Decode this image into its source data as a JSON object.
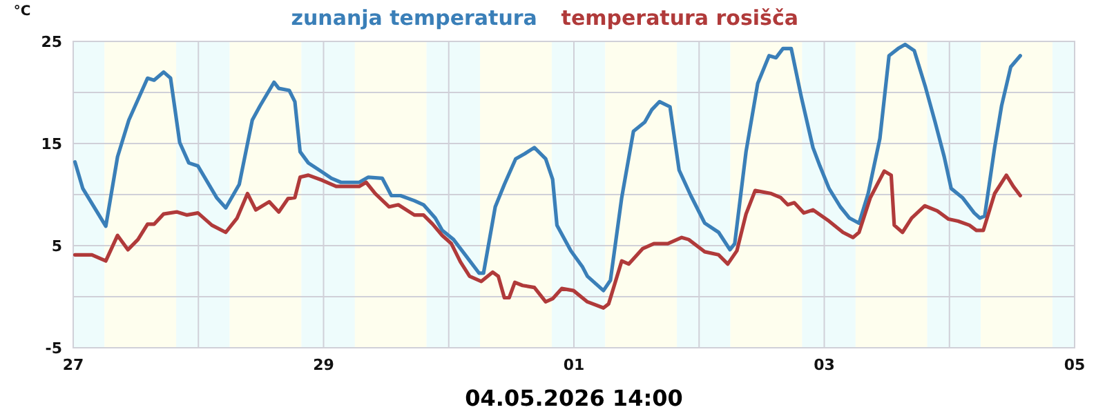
{
  "chart_data": {
    "type": "line",
    "ylabel": "°C",
    "legend": "top",
    "grid": true,
    "marker": "none",
    "line_style": "solid",
    "xlim": [
      "2026-04-27",
      "2026-05-05"
    ],
    "xticks": [
      {
        "value": "2026-04-27",
        "label": "27"
      },
      {
        "value": "2026-04-28",
        "label": null
      },
      {
        "value": "2026-04-29",
        "label": "29"
      },
      {
        "value": "2026-04-30",
        "label": null
      },
      {
        "value": "2026-05-01",
        "label": "01"
      },
      {
        "value": "2026-05-02",
        "label": null
      },
      {
        "value": "2026-05-03",
        "label": "03"
      },
      {
        "value": "2026-05-04",
        "label": null
      },
      {
        "value": "2026-05-05",
        "label": "05"
      }
    ],
    "ylim": [
      -5,
      25
    ],
    "yticks": [
      -5,
      {
        "value": 0,
        "label": null
      },
      5,
      {
        "value": 10,
        "label": null
      },
      15,
      {
        "value": 20,
        "label": null
      },
      25
    ],
    "bands": [
      {
        "axis": "x",
        "from": "2026-04-27T00:00",
        "to": "2026-04-27T06:00",
        "color": "#eefcfc"
      },
      {
        "axis": "x",
        "from": "2026-04-27T06:00",
        "to": "2026-04-27T19:45",
        "color": "#fefeee"
      },
      {
        "axis": "x",
        "from": "2026-04-27T19:45",
        "to": "2026-04-28T06:00",
        "color": "#eefcfc"
      },
      {
        "axis": "x",
        "from": "2026-04-28T06:00",
        "to": "2026-04-28T19:45",
        "color": "#fefeee"
      },
      {
        "axis": "x",
        "from": "2026-04-28T19:45",
        "to": "2026-04-29T06:00",
        "color": "#eefcfc"
      },
      {
        "axis": "x",
        "from": "2026-04-29T06:00",
        "to": "2026-04-29T19:45",
        "color": "#fefeee"
      },
      {
        "axis": "x",
        "from": "2026-04-29T19:45",
        "to": "2026-04-30T06:00",
        "color": "#eefcfc"
      },
      {
        "axis": "x",
        "from": "2026-04-30T06:00",
        "to": "2026-04-30T19:45",
        "color": "#fefeee"
      },
      {
        "axis": "x",
        "from": "2026-04-30T19:45",
        "to": "2026-05-01T06:00",
        "color": "#eefcfc"
      },
      {
        "axis": "x",
        "from": "2026-05-01T06:00",
        "to": "2026-05-01T19:45",
        "color": "#fefeee"
      },
      {
        "axis": "x",
        "from": "2026-05-01T19:45",
        "to": "2026-05-02T06:00",
        "color": "#eefcfc"
      },
      {
        "axis": "x",
        "from": "2026-05-02T06:00",
        "to": "2026-05-02T19:45",
        "color": "#fefeee"
      },
      {
        "axis": "x",
        "from": "2026-05-02T19:45",
        "to": "2026-05-03T06:00",
        "color": "#eefcfc"
      },
      {
        "axis": "x",
        "from": "2026-05-03T06:00",
        "to": "2026-05-03T19:45",
        "color": "#fefeee"
      },
      {
        "axis": "x",
        "from": "2026-05-03T19:45",
        "to": "2026-05-04T06:00",
        "color": "#eefcfc"
      },
      {
        "axis": "x",
        "from": "2026-05-04T06:00",
        "to": "2026-05-04T19:45",
        "color": "#fefeee"
      },
      {
        "axis": "x",
        "from": "2026-05-04T19:45",
        "to": "2026-05-05T00:00",
        "color": "#eefcfc"
      }
    ],
    "annotations": [
      "04.05.2026 14:00"
    ],
    "series": [
      {
        "name": "zunanja temperatura",
        "color": "#3a7fb8",
        "x": [
          "2026-04-27T00:20",
          "2026-04-27T01:50",
          "2026-04-27T06:15",
          "2026-04-27T08:30",
          "2026-04-27T10:40",
          "2026-04-27T14:15",
          "2026-04-27T15:30",
          "2026-04-27T17:20",
          "2026-04-27T18:40",
          "2026-04-27T20:25",
          "2026-04-27T22:10",
          "2026-04-27T23:55",
          "2026-04-28T03:30",
          "2026-04-28T05:15",
          "2026-04-28T07:50",
          "2026-04-28T10:20",
          "2026-04-28T11:50",
          "2026-04-28T14:30",
          "2026-04-28T15:25",
          "2026-04-28T17:25",
          "2026-04-28T18:30",
          "2026-04-28T19:30",
          "2026-04-28T21:05",
          "2026-04-28T23:45",
          "2026-04-29T01:30",
          "2026-04-29T03:20",
          "2026-04-29T06:50",
          "2026-04-29T08:35",
          "2026-04-29T11:15",
          "2026-04-29T13:00",
          "2026-04-29T14:45",
          "2026-04-29T17:25",
          "2026-04-29T19:10",
          "2026-04-29T21:25",
          "2026-04-29T22:45",
          "2026-04-30T00:55",
          "2026-04-30T03:10",
          "2026-04-30T05:50",
          "2026-04-30T06:40",
          "2026-04-30T08:55",
          "2026-04-30T10:40",
          "2026-04-30T12:50",
          "2026-04-30T14:35",
          "2026-04-30T16:25",
          "2026-04-30T18:35",
          "2026-04-30T19:55",
          "2026-04-30T20:45",
          "2026-04-30T23:25",
          "2026-05-01T01:40",
          "2026-05-01T02:35",
          "2026-05-01T05:40",
          "2026-05-01T07:00",
          "2026-05-01T09:10",
          "2026-05-01T11:25",
          "2026-05-01T13:35",
          "2026-05-01T14:55",
          "2026-05-01T16:25",
          "2026-05-01T18:25",
          "2026-05-01T20:10",
          "2026-05-01T22:25",
          "2026-05-02T01:05",
          "2026-05-02T03:45",
          "2026-05-02T05:55",
          "2026-05-02T06:50",
          "2026-05-02T09:00",
          "2026-05-02T11:15",
          "2026-05-02T13:25",
          "2026-05-02T14:45",
          "2026-05-02T16:05",
          "2026-05-02T17:40",
          "2026-05-02T19:35",
          "2026-05-02T21:50",
          "2026-05-02T23:10",
          "2026-05-03T00:55",
          "2026-05-03T03:05",
          "2026-05-03T04:50",
          "2026-05-03T06:40",
          "2026-05-03T08:25",
          "2026-05-03T10:40",
          "2026-05-03T12:25",
          "2026-05-03T14:10",
          "2026-05-03T15:30",
          "2026-05-03T17:15",
          "2026-05-03T19:25",
          "2026-05-03T21:15",
          "2026-05-03T23:00",
          "2026-05-04T00:20",
          "2026-05-04T02:30",
          "2026-05-04T04:45",
          "2026-05-04T05:50",
          "2026-05-04T06:45",
          "2026-05-04T08:40",
          "2026-05-04T10:00",
          "2026-05-04T11:45",
          "2026-05-04T13:35"
        ],
        "values": [
          13.2,
          10.6,
          6.9,
          13.7,
          17.3,
          21.4,
          21.2,
          22.0,
          21.4,
          15.1,
          13.1,
          12.8,
          9.7,
          8.7,
          11.0,
          17.3,
          18.7,
          21.0,
          20.4,
          20.2,
          19.1,
          14.2,
          13.1,
          12.2,
          11.6,
          11.2,
          11.2,
          11.7,
          11.6,
          9.9,
          9.9,
          9.4,
          9.0,
          7.7,
          6.5,
          5.6,
          4.1,
          2.3,
          2.3,
          8.8,
          11.0,
          13.5,
          14.0,
          14.6,
          13.5,
          11.5,
          7.0,
          4.5,
          2.9,
          2.0,
          0.6,
          1.6,
          9.7,
          16.2,
          17.1,
          18.3,
          19.1,
          18.6,
          12.4,
          9.9,
          7.2,
          6.3,
          4.6,
          5.2,
          14.2,
          20.9,
          23.6,
          23.4,
          24.3,
          24.3,
          19.6,
          14.6,
          12.8,
          10.6,
          8.8,
          7.7,
          7.2,
          10.1,
          15.5,
          23.6,
          24.3,
          24.7,
          24.1,
          20.5,
          17.1,
          13.7,
          10.6,
          9.7,
          8.2,
          7.7,
          7.9,
          14.6,
          18.7,
          22.5,
          23.6
        ]
      },
      {
        "name": "temperatura rosišča",
        "color": "#b03a3a",
        "x": [
          "2026-04-27T00:20",
          "2026-04-27T03:35",
          "2026-04-27T06:15",
          "2026-04-27T08:30",
          "2026-04-27T10:30",
          "2026-04-27T12:25",
          "2026-04-27T14:15",
          "2026-04-27T15:30",
          "2026-04-27T17:20",
          "2026-04-27T19:55",
          "2026-04-27T21:45",
          "2026-04-27T23:55",
          "2026-04-28T02:35",
          "2026-04-28T05:15",
          "2026-04-28T07:25",
          "2026-04-28T09:25",
          "2026-04-28T11:00",
          "2026-04-28T13:35",
          "2026-04-28T15:25",
          "2026-04-28T17:10",
          "2026-04-28T18:30",
          "2026-04-28T19:30",
          "2026-04-28T21:05",
          "2026-04-28T23:45",
          "2026-04-29T02:25",
          "2026-04-29T06:50",
          "2026-04-29T08:10",
          "2026-04-29T09:55",
          "2026-04-29T12:35",
          "2026-04-29T14:20",
          "2026-04-29T17:25",
          "2026-04-29T19:10",
          "2026-04-29T20:55",
          "2026-04-29T22:45",
          "2026-04-30T00:30",
          "2026-04-30T02:15",
          "2026-04-30T04:00",
          "2026-04-30T06:15",
          "2026-04-30T08:25",
          "2026-04-30T09:30",
          "2026-04-30T10:40",
          "2026-04-30T11:35",
          "2026-04-30T12:40",
          "2026-04-30T14:10",
          "2026-04-30T16:25",
          "2026-04-30T18:35",
          "2026-04-30T19:55",
          "2026-04-30T21:40",
          "2026-04-30T23:55",
          "2026-05-01T02:35",
          "2026-05-01T05:40",
          "2026-05-01T06:40",
          "2026-05-01T09:10",
          "2026-05-01T10:30",
          "2026-05-01T13:10",
          "2026-05-01T15:20",
          "2026-05-01T18:00",
          "2026-05-01T20:40",
          "2026-05-01T22:00",
          "2026-05-02T01:05",
          "2026-05-02T03:45",
          "2026-05-02T05:30",
          "2026-05-02T07:15",
          "2026-05-02T09:00",
          "2026-05-02T10:45",
          "2026-05-02T13:50",
          "2026-05-02T15:40",
          "2026-05-02T17:00",
          "2026-05-02T18:15",
          "2026-05-02T20:05",
          "2026-05-02T21:50",
          "2026-05-03T00:55",
          "2026-05-03T03:35",
          "2026-05-03T05:30",
          "2026-05-03T06:40",
          "2026-05-03T08:50",
          "2026-05-03T11:30",
          "2026-05-03T12:50",
          "2026-05-03T13:25",
          "2026-05-03T15:00",
          "2026-05-03T16:45",
          "2026-05-03T19:15",
          "2026-05-03T21:40",
          "2026-05-03T23:50",
          "2026-05-04T01:40",
          "2026-05-04T03:50",
          "2026-05-04T05:10",
          "2026-05-04T06:30",
          "2026-05-04T08:40",
          "2026-05-04T10:55",
          "2026-05-04T12:15",
          "2026-05-04T13:35"
        ],
        "values": [
          4.1,
          4.1,
          3.5,
          6.0,
          4.6,
          5.6,
          7.1,
          7.1,
          8.1,
          8.3,
          8.0,
          8.2,
          7.0,
          6.3,
          7.7,
          10.1,
          8.5,
          9.3,
          8.3,
          9.6,
          9.7,
          11.7,
          11.9,
          11.4,
          10.8,
          10.8,
          11.2,
          10.1,
          8.8,
          9.0,
          8.0,
          8.0,
          7.1,
          6.0,
          5.2,
          3.4,
          2.0,
          1.5,
          2.4,
          2.0,
          -0.1,
          -0.1,
          1.4,
          1.1,
          0.9,
          -0.5,
          -0.2,
          0.8,
          0.6,
          -0.5,
          -1.1,
          -0.7,
          3.5,
          3.2,
          4.7,
          5.2,
          5.2,
          5.8,
          5.6,
          4.4,
          4.1,
          3.2,
          4.5,
          8.1,
          10.4,
          10.1,
          9.7,
          9.0,
          9.2,
          8.2,
          8.5,
          7.4,
          6.3,
          5.8,
          6.3,
          9.7,
          12.3,
          11.9,
          7.0,
          6.3,
          7.7,
          8.9,
          8.4,
          7.6,
          7.4,
          7.0,
          6.5,
          6.5,
          10.1,
          11.9,
          10.8,
          9.9
        ]
      }
    ]
  }
}
